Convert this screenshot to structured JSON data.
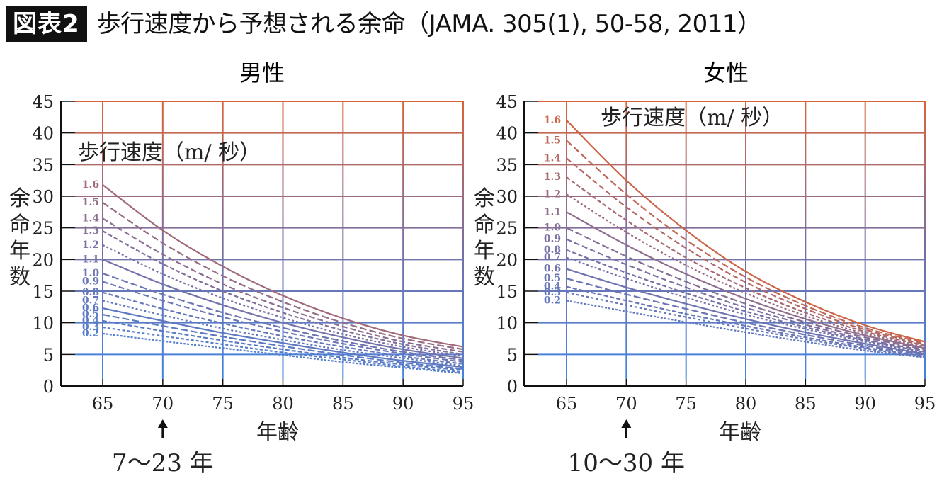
{
  "header": {
    "badge": "図表2",
    "title": "歩行速度から予想される余命（JAMA. 305(1), 50-58, 2011）"
  },
  "colors": {
    "top": "#d9643a",
    "mid": "#7a6fa3",
    "bottom": "#3d86e6",
    "axis": "#111111",
    "badge_bg": "#111111"
  },
  "chart_data": [
    {
      "type": "line",
      "title": "男性",
      "xlabel": "年齢",
      "ylabel": "余命年数",
      "legend_title": "歩行速度（m/ 秒）",
      "annotation": "7〜23 年",
      "annotation_x": 70,
      "xlim": [
        62,
        95
      ],
      "ylim": [
        0,
        45
      ],
      "x_ticks": [
        65,
        70,
        75,
        80,
        85,
        90,
        95
      ],
      "y_ticks": [
        0,
        5,
        10,
        15,
        20,
        25,
        30,
        35,
        40,
        45
      ],
      "grid": true,
      "x": [
        65,
        70,
        75,
        80,
        85,
        90,
        95
      ],
      "series": [
        {
          "name": "1.6",
          "values": [
            31.8,
            24.6,
            18.9,
            14.3,
            10.7,
            8.0,
            6.2
          ]
        },
        {
          "name": "1.5",
          "values": [
            29.0,
            22.6,
            17.4,
            13.3,
            10.0,
            7.5,
            5.8
          ]
        },
        {
          "name": "1.4",
          "values": [
            26.5,
            20.8,
            16.1,
            12.4,
            9.4,
            7.0,
            5.4
          ]
        },
        {
          "name": "1.3",
          "values": [
            24.5,
            19.3,
            15.0,
            11.6,
            8.8,
            6.6,
            5.0
          ]
        },
        {
          "name": "1.2",
          "values": [
            22.3,
            17.7,
            13.9,
            10.8,
            8.2,
            6.2,
            4.7
          ]
        },
        {
          "name": "1.1",
          "values": [
            20.0,
            16.1,
            12.8,
            10.0,
            7.7,
            5.8,
            4.4
          ]
        },
        {
          "name": "1.0",
          "values": [
            17.8,
            14.5,
            11.6,
            9.2,
            7.1,
            5.4,
            4.1
          ]
        },
        {
          "name": "0.9",
          "values": [
            16.5,
            13.5,
            10.9,
            8.6,
            6.7,
            5.1,
            3.8
          ]
        },
        {
          "name": "0.8",
          "values": [
            14.8,
            12.2,
            9.9,
            7.9,
            6.2,
            4.7,
            3.5
          ]
        },
        {
          "name": "0.7",
          "values": [
            13.5,
            11.2,
            9.1,
            7.3,
            5.7,
            4.4,
            3.2
          ]
        },
        {
          "name": "0.6",
          "values": [
            12.3,
            10.3,
            8.4,
            6.8,
            5.3,
            4.0,
            3.0
          ]
        },
        {
          "name": "0.5",
          "values": [
            11.3,
            9.5,
            7.8,
            6.3,
            4.9,
            3.7,
            2.7
          ]
        },
        {
          "name": "0.4",
          "values": [
            10.3,
            8.7,
            7.2,
            5.8,
            4.5,
            3.4,
            2.5
          ]
        },
        {
          "name": "0.3",
          "values": [
            9.3,
            7.9,
            6.6,
            5.3,
            4.2,
            3.1,
            2.2
          ]
        },
        {
          "name": "0.2",
          "values": [
            8.3,
            7.1,
            6.0,
            4.9,
            3.8,
            2.9,
            2.0
          ]
        }
      ]
    },
    {
      "type": "line",
      "title": "女性",
      "xlabel": "年齢",
      "ylabel": "余命年数",
      "legend_title": "歩行速度（m/ 秒）",
      "annotation": "10〜30 年",
      "annotation_x": 70,
      "xlim": [
        62,
        95
      ],
      "ylim": [
        0,
        45
      ],
      "x_ticks": [
        65,
        70,
        75,
        80,
        85,
        90,
        95
      ],
      "y_ticks": [
        0,
        5,
        10,
        15,
        20,
        25,
        30,
        35,
        40,
        45
      ],
      "grid": true,
      "x": [
        65,
        70,
        75,
        80,
        85,
        90,
        95
      ],
      "series": [
        {
          "name": "1.6",
          "values": [
            42.0,
            32.5,
            24.6,
            18.1,
            13.3,
            9.6,
            7.0
          ]
        },
        {
          "name": "1.5",
          "values": [
            38.8,
            30.3,
            23.1,
            17.2,
            12.7,
            9.2,
            6.8
          ]
        },
        {
          "name": "1.4",
          "values": [
            36.0,
            28.3,
            21.8,
            16.4,
            12.2,
            8.9,
            6.6
          ]
        },
        {
          "name": "1.3",
          "values": [
            33.0,
            26.2,
            20.3,
            15.5,
            11.6,
            8.6,
            6.4
          ]
        },
        {
          "name": "1.2",
          "values": [
            30.3,
            24.3,
            19.1,
            14.7,
            11.1,
            8.3,
            6.2
          ]
        },
        {
          "name": "1.1",
          "values": [
            27.5,
            22.3,
            17.7,
            13.8,
            10.6,
            8.0,
            6.0
          ]
        },
        {
          "name": "1.0",
          "values": [
            25.0,
            20.5,
            16.5,
            13.0,
            10.1,
            7.7,
            5.8
          ]
        },
        {
          "name": "0.9",
          "values": [
            23.2,
            19.2,
            15.6,
            12.4,
            9.7,
            7.4,
            5.6
          ]
        },
        {
          "name": "0.8",
          "values": [
            21.5,
            17.9,
            14.7,
            11.8,
            9.3,
            7.2,
            5.4
          ]
        },
        {
          "name": "0.7",
          "values": [
            20.3,
            17.0,
            14.0,
            11.3,
            9.0,
            7.0,
            5.3
          ]
        },
        {
          "name": "0.6",
          "values": [
            18.5,
            15.6,
            13.0,
            10.6,
            8.5,
            6.7,
            5.1
          ]
        },
        {
          "name": "0.5",
          "values": [
            17.0,
            14.5,
            12.2,
            10.0,
            8.1,
            6.4,
            4.9
          ]
        },
        {
          "name": "0.4",
          "values": [
            15.7,
            13.5,
            11.4,
            9.5,
            7.7,
            6.1,
            4.7
          ]
        },
        {
          "name": "0.3",
          "values": [
            14.8,
            12.8,
            10.9,
            9.1,
            7.4,
            5.9,
            4.6
          ]
        },
        {
          "name": "0.2",
          "values": [
            13.5,
            11.8,
            10.1,
            8.5,
            7.0,
            5.6,
            4.5
          ]
        }
      ]
    }
  ]
}
